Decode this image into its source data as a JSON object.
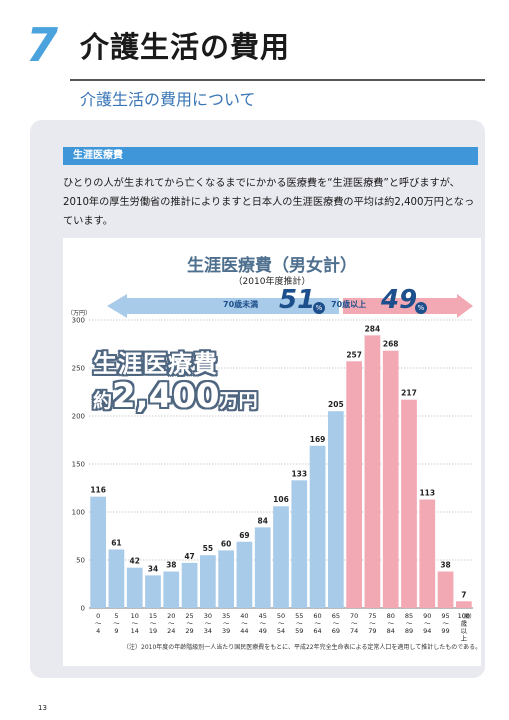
{
  "header": {
    "chapter_number": "7",
    "chapter_title": "介護生活の費用",
    "subtitle": "介護生活の費用について"
  },
  "section": {
    "label": "生涯医療費",
    "body": "ひとりの人が生まれてから亡くなるまでにかかる医療費を“生涯医療費”と呼びますが、2010年の厚生労働省の推計によりますと日本人の生涯医療費の平均は約2,400万円となっています。"
  },
  "callout": {
    "line1": "生涯医療費",
    "prefix": "約",
    "amount": "2,400",
    "suffix": "万円"
  },
  "shares": {
    "under_label": "70歳未満",
    "under_pct": "51",
    "over_label": "70歳以上",
    "over_pct": "49",
    "unit": "%"
  },
  "colors": {
    "under70": "#a9cbea",
    "over70": "#f2a9b3",
    "accent": "#3f96d8"
  },
  "chart_data": {
    "type": "bar",
    "title": "生涯医療費（男女計）",
    "subtitle": "（2010年度推計）",
    "ylabel": "（万円）",
    "xunit": "（歳）",
    "ylim": [
      0,
      300
    ],
    "yticks": [
      0,
      50,
      100,
      150,
      200,
      250,
      300
    ],
    "grid": true,
    "categories": [
      [
        "0",
        "〜",
        "4"
      ],
      [
        "5",
        "〜",
        "9"
      ],
      [
        "10",
        "〜",
        "14"
      ],
      [
        "15",
        "〜",
        "19"
      ],
      [
        "20",
        "〜",
        "24"
      ],
      [
        "25",
        "〜",
        "29"
      ],
      [
        "30",
        "〜",
        "34"
      ],
      [
        "35",
        "〜",
        "39"
      ],
      [
        "40",
        "〜",
        "44"
      ],
      [
        "45",
        "〜",
        "49"
      ],
      [
        "50",
        "〜",
        "54"
      ],
      [
        "55",
        "〜",
        "59"
      ],
      [
        "60",
        "〜",
        "64"
      ],
      [
        "65",
        "〜",
        "69"
      ],
      [
        "70",
        "〜",
        "74"
      ],
      [
        "75",
        "〜",
        "79"
      ],
      [
        "80",
        "〜",
        "84"
      ],
      [
        "85",
        "〜",
        "89"
      ],
      [
        "90",
        "〜",
        "94"
      ],
      [
        "95",
        "〜",
        "99"
      ],
      [
        "100",
        "歳",
        "以",
        "上"
      ]
    ],
    "values": [
      116,
      61,
      42,
      34,
      38,
      47,
      55,
      60,
      69,
      84,
      106,
      133,
      169,
      205,
      257,
      284,
      268,
      217,
      113,
      38,
      7
    ],
    "over70_start_index": 14
  },
  "footnote": "（注）2010年度の年齢階級別一人当たり国民医療費をもとに、平成22年完全生命表による定常人口を適用して推計したものである。",
  "page_number": "13"
}
